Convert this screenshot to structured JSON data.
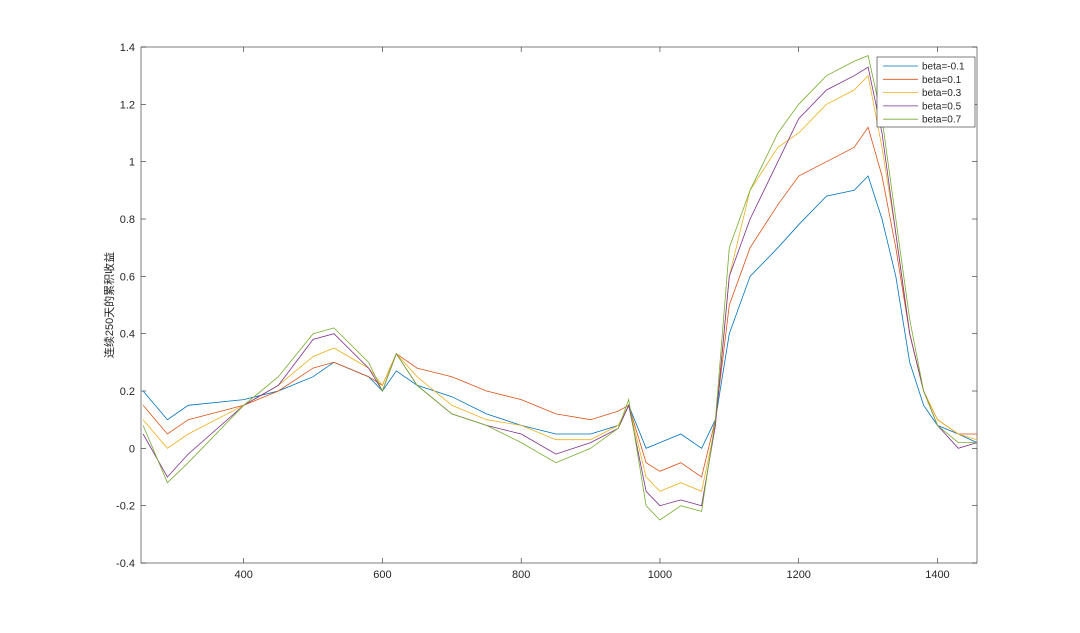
{
  "chart_data": {
    "type": "line",
    "title": "",
    "xlabel": "",
    "ylabel": "连续250天的累积收益",
    "xlim": [
      252,
      1457
    ],
    "ylim": [
      -0.4,
      1.4
    ],
    "xticks": [
      400,
      600,
      800,
      1000,
      1200,
      1400
    ],
    "yticks": [
      -0.4,
      -0.2,
      0,
      0.2,
      0.4,
      0.6,
      0.8,
      1,
      1.2,
      1.4
    ],
    "grid": false,
    "legend_position": "top-right",
    "x": [
      255,
      290,
      320,
      400,
      450,
      500,
      530,
      580,
      600,
      620,
      650,
      700,
      750,
      800,
      850,
      900,
      940,
      955,
      980,
      1000,
      1030,
      1060,
      1080,
      1100,
      1130,
      1170,
      1200,
      1240,
      1280,
      1300,
      1320,
      1340,
      1360,
      1380,
      1400,
      1430,
      1457
    ],
    "series": [
      {
        "name": "beta=-0.1",
        "color": "#0072BD",
        "values": [
          0.2,
          0.1,
          0.15,
          0.17,
          0.2,
          0.25,
          0.3,
          0.25,
          0.2,
          0.27,
          0.22,
          0.18,
          0.12,
          0.08,
          0.05,
          0.05,
          0.08,
          0.15,
          0.0,
          0.02,
          0.05,
          0.0,
          0.1,
          0.4,
          0.6,
          0.7,
          0.78,
          0.88,
          0.9,
          0.95,
          0.8,
          0.6,
          0.3,
          0.15,
          0.08,
          0.05,
          0.02
        ]
      },
      {
        "name": "beta=0.1",
        "color": "#D95319",
        "values": [
          0.15,
          0.05,
          0.1,
          0.15,
          0.2,
          0.28,
          0.3,
          0.25,
          0.22,
          0.33,
          0.28,
          0.25,
          0.2,
          0.17,
          0.12,
          0.1,
          0.13,
          0.15,
          -0.05,
          -0.08,
          -0.05,
          -0.1,
          0.1,
          0.5,
          0.7,
          0.85,
          0.95,
          1.0,
          1.05,
          1.12,
          0.95,
          0.7,
          0.4,
          0.2,
          0.1,
          0.05,
          0.05
        ]
      },
      {
        "name": "beta=0.3",
        "color": "#EDB120",
        "values": [
          0.1,
          0.0,
          0.05,
          0.15,
          0.22,
          0.32,
          0.35,
          0.28,
          0.22,
          0.33,
          0.25,
          0.15,
          0.1,
          0.08,
          0.03,
          0.03,
          0.08,
          0.15,
          -0.1,
          -0.15,
          -0.12,
          -0.15,
          0.08,
          0.6,
          0.9,
          1.05,
          1.1,
          1.2,
          1.25,
          1.3,
          1.05,
          0.75,
          0.4,
          0.2,
          0.1,
          0.05,
          0.03
        ]
      },
      {
        "name": "beta=0.5",
        "color": "#7E2F8E",
        "values": [
          0.05,
          -0.1,
          -0.02,
          0.15,
          0.22,
          0.38,
          0.4,
          0.28,
          0.2,
          0.33,
          0.22,
          0.12,
          0.08,
          0.05,
          -0.02,
          0.02,
          0.07,
          0.15,
          -0.15,
          -0.2,
          -0.18,
          -0.2,
          0.08,
          0.6,
          0.8,
          1.0,
          1.15,
          1.25,
          1.3,
          1.33,
          1.1,
          0.75,
          0.4,
          0.2,
          0.08,
          0.0,
          0.02
        ]
      },
      {
        "name": "beta=0.7",
        "color": "#77AC30",
        "values": [
          0.08,
          -0.12,
          -0.05,
          0.15,
          0.25,
          0.4,
          0.42,
          0.3,
          0.2,
          0.33,
          0.22,
          0.12,
          0.08,
          0.02,
          -0.05,
          0.0,
          0.07,
          0.17,
          -0.2,
          -0.25,
          -0.2,
          -0.22,
          0.1,
          0.7,
          0.9,
          1.1,
          1.2,
          1.3,
          1.35,
          1.37,
          1.15,
          0.8,
          0.45,
          0.2,
          0.08,
          0.02,
          0.02
        ]
      }
    ]
  }
}
